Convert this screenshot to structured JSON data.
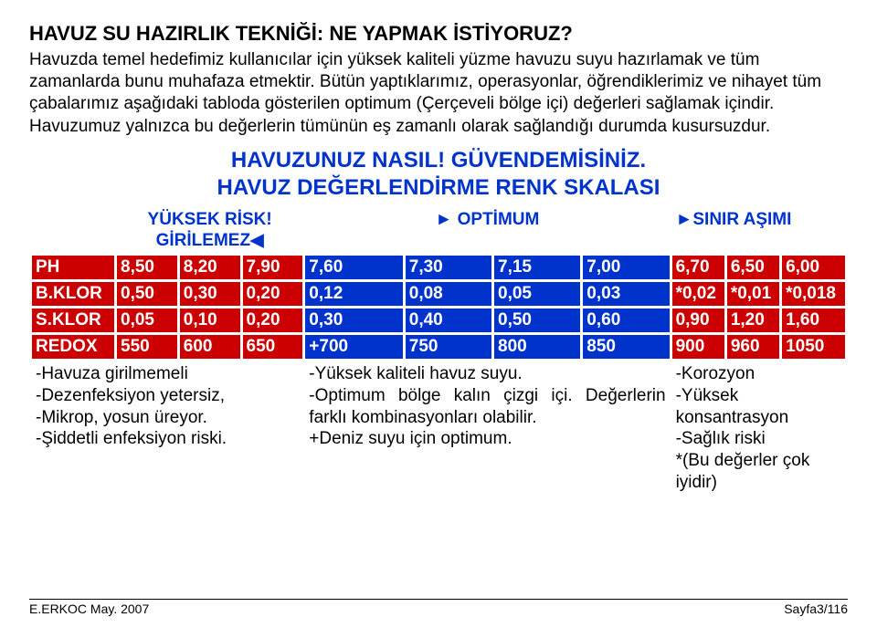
{
  "title": "HAVUZ SU HAZIRLIK TEKNİĞİ: NE YAPMAK İSTİYORUZ?",
  "intro1": "Havuzda temel hedefimiz kullanıcılar için yüksek kaliteli yüzme havuzu suyu hazırlamak ve tüm zamanlarda bunu muhafaza etmektir. Bütün yaptıklarımız, operasyonlar, öğrendiklerimiz ve nihayet tüm çabalarımız aşağıdaki tabloda gösterilen optimum (Çerçeveli bölge içi) değerleri sağlamak içindir.",
  "intro2": "Havuzumuz yalnızca bu değerlerin tümünün eş zamanlı olarak sağlandığı durumda kusursuzdur.",
  "headline1": "HAVUZUNUZ NASIL! GÜVENDEMİSİNİZ.",
  "headline2": "HAVUZ DEĞERLENDİRME RENK SKALASI",
  "zone_risk_label": "YÜKSEK RİSK! GİRİLEMEZ◀",
  "zone_optimum_label": "► OPTİMUM",
  "zone_over_label": "►SINIR AŞIMI",
  "rows": [
    {
      "label": "PH",
      "risk": [
        "8,50",
        "8,20",
        "7,90"
      ],
      "opt": [
        "7,60",
        "7,30",
        "7,15",
        "7,00"
      ],
      "over": [
        "6,70",
        "6,50",
        "6,00"
      ]
    },
    {
      "label": "B.KLOR",
      "risk": [
        "0,50",
        "0,30",
        "0,20"
      ],
      "opt": [
        "0,12",
        "0,08",
        "0,05",
        "0,03"
      ],
      "over": [
        "*0,02",
        "*0,01",
        "*0,018"
      ]
    },
    {
      "label": "S.KLOR",
      "risk": [
        "0,05",
        "0,10",
        "0,20"
      ],
      "opt": [
        "0,30",
        "0,40",
        "0,50",
        "0,60"
      ],
      "over": [
        "0,90",
        "1,20",
        "1,60"
      ]
    },
    {
      "label": "REDOX",
      "risk": [
        "550",
        "600",
        "650"
      ],
      "opt": [
        "+700",
        "750",
        "800",
        "850"
      ],
      "over": [
        "900",
        "960",
        "1050"
      ]
    }
  ],
  "notes_risk": [
    "-Havuza girilmemeli",
    "-Dezenfeksiyon yetersiz,",
    "-Mikrop, yosun üreyor.",
    "-Şiddetli enfeksiyon riski."
  ],
  "notes_opt": [
    "-Yüksek kaliteli havuz suyu.",
    "-Optimum bölge kalın çizgi içi. Değerlerin farklı kombinasyonları olabilir.",
    "+Deniz suyu için optimum."
  ],
  "notes_over": [
    "-Korozyon",
    "-Yüksek konsantrasyon",
    "-Sağlık riski",
    "*(Bu değerler çok iyidir)"
  ],
  "footer_left": "E.ERKOC  May. 2007",
  "footer_right": "Sayfa3/116",
  "colors": {
    "red": "#cc0000",
    "blue": "#0033cc",
    "white": "#ffffff"
  }
}
